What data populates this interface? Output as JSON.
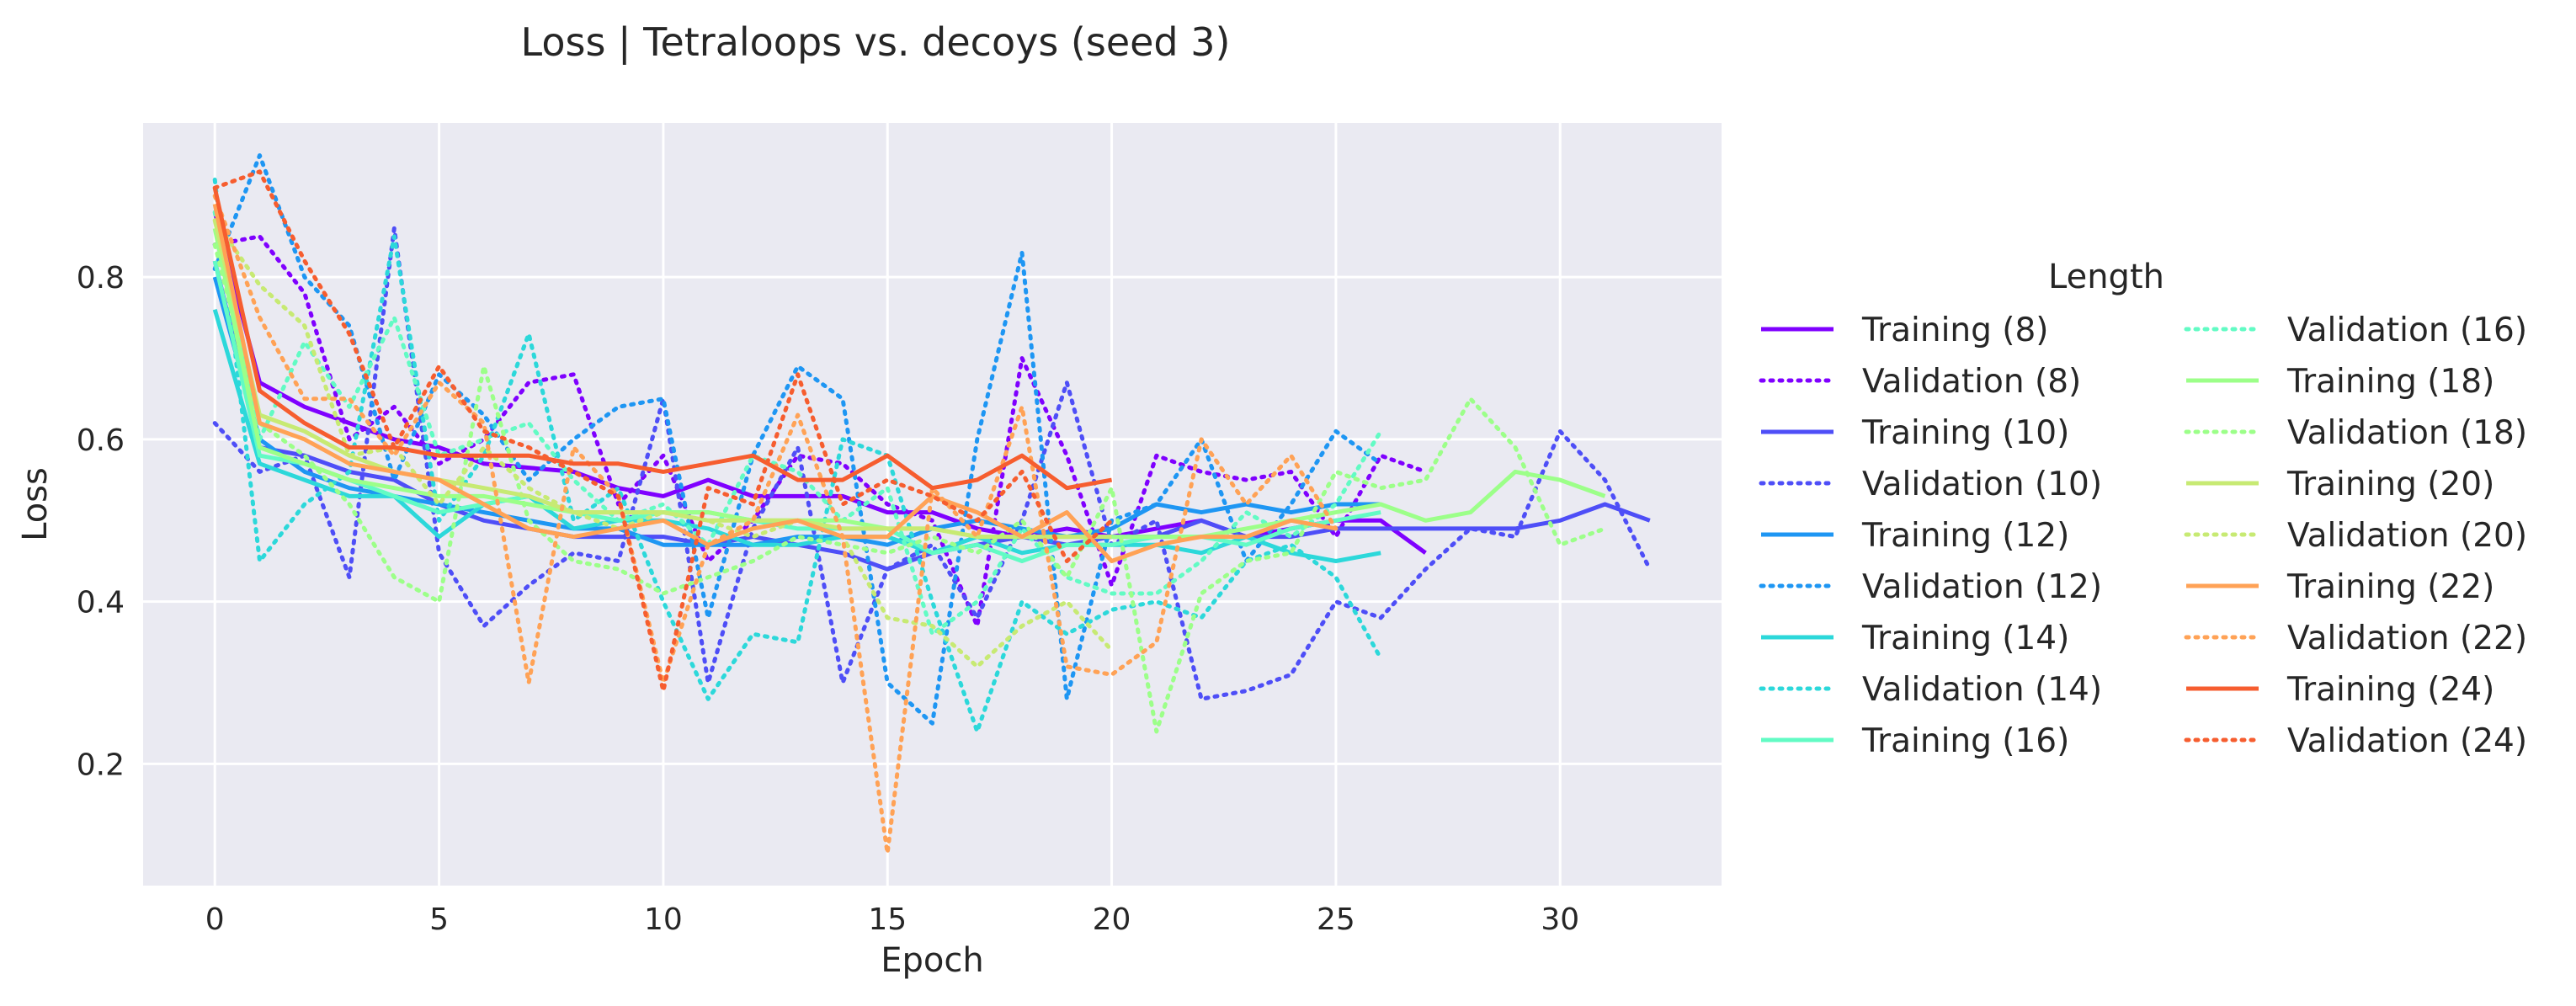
{
  "chart_data": {
    "type": "line",
    "title": "Loss | Tetraloops vs. decoys (seed 3)",
    "xlabel": "Epoch",
    "ylabel": "Loss",
    "xlim": [
      -1.6,
      33.6
    ],
    "ylim": [
      0.05,
      0.99
    ],
    "xticks": [
      0,
      5,
      10,
      15,
      20,
      25,
      30
    ],
    "yticks": [
      0.2,
      0.4,
      0.6,
      0.8
    ],
    "grid": true,
    "legend": {
      "title": "Length",
      "placement": "right",
      "columns": 2
    },
    "series": [
      {
        "name": "Training (8)",
        "color": "#7f00ff",
        "dash": "solid",
        "y": [
          0.88,
          0.67,
          0.64,
          0.62,
          0.6,
          0.59,
          0.57,
          0.565,
          0.56,
          0.54,
          0.53,
          0.55,
          0.53,
          0.53,
          0.53,
          0.51,
          0.51,
          0.49,
          0.48,
          0.49,
          0.48,
          0.49,
          0.5,
          0.48,
          0.49,
          0.5,
          0.5,
          0.46
        ]
      },
      {
        "name": "Validation (8)",
        "color": "#7f00ff",
        "dash": "dotted",
        "y": [
          0.84,
          0.85,
          0.78,
          0.6,
          0.64,
          0.57,
          0.6,
          0.67,
          0.68,
          0.52,
          0.58,
          0.45,
          0.5,
          0.58,
          0.57,
          0.52,
          0.5,
          0.37,
          0.7,
          0.58,
          0.42,
          0.58,
          0.56,
          0.55,
          0.56,
          0.48,
          0.58,
          0.56
        ]
      },
      {
        "name": "Training (10)",
        "color": "#4e4ef7",
        "dash": "solid",
        "y": [
          0.82,
          0.59,
          0.58,
          0.56,
          0.55,
          0.52,
          0.5,
          0.49,
          0.48,
          0.48,
          0.48,
          0.47,
          0.48,
          0.47,
          0.46,
          0.44,
          0.46,
          0.47,
          0.48,
          0.47,
          0.48,
          0.48,
          0.5,
          0.48,
          0.48,
          0.49,
          0.49,
          0.49,
          0.49,
          0.49,
          0.5,
          0.52,
          0.5
        ]
      },
      {
        "name": "Validation (10)",
        "color": "#4e4ef7",
        "dash": "dotted",
        "y": [
          0.62,
          0.56,
          0.58,
          0.43,
          0.86,
          0.46,
          0.37,
          0.42,
          0.46,
          0.45,
          0.65,
          0.3,
          0.49,
          0.59,
          0.3,
          0.44,
          0.47,
          0.38,
          0.5,
          0.67,
          0.47,
          0.5,
          0.28,
          0.29,
          0.31,
          0.4,
          0.38,
          0.44,
          0.49,
          0.48,
          0.61,
          0.55,
          0.44
        ]
      },
      {
        "name": "Training (12)",
        "color": "#1e96f3",
        "dash": "solid",
        "y": [
          0.8,
          0.6,
          0.56,
          0.54,
          0.53,
          0.52,
          0.51,
          0.5,
          0.49,
          0.49,
          0.47,
          0.47,
          0.47,
          0.48,
          0.48,
          0.47,
          0.49,
          0.5,
          0.49,
          0.48,
          0.49,
          0.52,
          0.51,
          0.52,
          0.51,
          0.52,
          0.52
        ]
      },
      {
        "name": "Validation (12)",
        "color": "#1e96f3",
        "dash": "dotted",
        "y": [
          0.81,
          0.95,
          0.8,
          0.74,
          0.55,
          0.68,
          0.63,
          0.55,
          0.6,
          0.64,
          0.65,
          0.38,
          0.58,
          0.69,
          0.65,
          0.3,
          0.25,
          0.6,
          0.83,
          0.28,
          0.5,
          0.52,
          0.6,
          0.45,
          0.52,
          0.61,
          0.57
        ]
      },
      {
        "name": "Training (14)",
        "color": "#2cd8da",
        "dash": "solid",
        "y": [
          0.76,
          0.57,
          0.55,
          0.53,
          0.53,
          0.48,
          0.52,
          0.53,
          0.49,
          0.5,
          0.5,
          0.49,
          0.47,
          0.47,
          0.48,
          0.48,
          0.46,
          0.48,
          0.46,
          0.47,
          0.47,
          0.47,
          0.46,
          0.48,
          0.46,
          0.45,
          0.46
        ]
      },
      {
        "name": "Validation (14)",
        "color": "#2cd8da",
        "dash": "dotted",
        "y": [
          0.92,
          0.45,
          0.52,
          0.56,
          0.85,
          0.5,
          0.58,
          0.73,
          0.5,
          0.54,
          0.4,
          0.28,
          0.36,
          0.35,
          0.6,
          0.58,
          0.4,
          0.24,
          0.4,
          0.36,
          0.39,
          0.4,
          0.38,
          0.45,
          0.47,
          0.43,
          0.33
        ]
      },
      {
        "name": "Training (16)",
        "color": "#62fbc4",
        "dash": "solid",
        "y": [
          0.82,
          0.58,
          0.57,
          0.55,
          0.53,
          0.51,
          0.52,
          0.53,
          0.51,
          0.5,
          0.51,
          0.51,
          0.5,
          0.49,
          0.49,
          0.49,
          0.46,
          0.47,
          0.45,
          0.47,
          0.47,
          0.48,
          0.48,
          0.47,
          0.49,
          0.5,
          0.51
        ]
      },
      {
        "name": "Validation (16)",
        "color": "#62fbc4",
        "dash": "dotted",
        "y": [
          0.88,
          0.6,
          0.72,
          0.64,
          0.75,
          0.58,
          0.6,
          0.62,
          0.55,
          0.5,
          0.52,
          0.47,
          0.58,
          0.56,
          0.5,
          0.54,
          0.36,
          0.4,
          0.49,
          0.43,
          0.41,
          0.41,
          0.45,
          0.51,
          0.48,
          0.52,
          0.61
        ]
      },
      {
        "name": "Training (18)",
        "color": "#9cff89",
        "dash": "solid",
        "y": [
          0.86,
          0.59,
          0.57,
          0.55,
          0.54,
          0.53,
          0.53,
          0.52,
          0.51,
          0.51,
          0.51,
          0.51,
          0.5,
          0.5,
          0.5,
          0.49,
          0.49,
          0.48,
          0.48,
          0.48,
          0.48,
          0.48,
          0.48,
          0.49,
          0.5,
          0.51,
          0.52,
          0.5,
          0.51,
          0.56,
          0.55,
          0.53
        ]
      },
      {
        "name": "Validation (18)",
        "color": "#9cff89",
        "dash": "dotted",
        "y": [
          0.84,
          0.62,
          0.58,
          0.52,
          0.43,
          0.4,
          0.69,
          0.5,
          0.45,
          0.44,
          0.41,
          0.43,
          0.45,
          0.48,
          0.47,
          0.46,
          0.48,
          0.46,
          0.5,
          0.43,
          0.54,
          0.24,
          0.41,
          0.45,
          0.46,
          0.56,
          0.54,
          0.55,
          0.65,
          0.59,
          0.47,
          0.49
        ]
      },
      {
        "name": "Training (20)",
        "color": "#c7ea73",
        "dash": "solid",
        "y": [
          0.87,
          0.63,
          0.61,
          0.58,
          0.56,
          0.55,
          0.54,
          0.53,
          0.51,
          0.51,
          0.51,
          0.5,
          0.5,
          0.5,
          0.49,
          0.49,
          0.49,
          0.48,
          0.48,
          0.48,
          0.48
        ]
      },
      {
        "name": "Validation (20)",
        "color": "#c7ea73",
        "dash": "dotted",
        "y": [
          0.87,
          0.79,
          0.74,
          0.58,
          0.59,
          0.52,
          0.59,
          0.54,
          0.51,
          0.49,
          0.51,
          0.5,
          0.48,
          0.5,
          0.48,
          0.38,
          0.37,
          0.32,
          0.37,
          0.4,
          0.34
        ]
      },
      {
        "name": "Training (22)",
        "color": "#ffa256",
        "dash": "solid",
        "y": [
          0.89,
          0.62,
          0.6,
          0.57,
          0.56,
          0.55,
          0.52,
          0.49,
          0.48,
          0.49,
          0.5,
          0.47,
          0.49,
          0.5,
          0.48,
          0.48,
          0.53,
          0.51,
          0.48,
          0.51,
          0.45,
          0.47,
          0.48,
          0.48,
          0.5,
          0.49
        ]
      },
      {
        "name": "Validation (22)",
        "color": "#ffa256",
        "dash": "dotted",
        "y": [
          0.9,
          0.75,
          0.65,
          0.65,
          0.58,
          0.67,
          0.62,
          0.3,
          0.59,
          0.53,
          0.3,
          0.47,
          0.5,
          0.63,
          0.48,
          0.09,
          0.54,
          0.48,
          0.64,
          0.32,
          0.31,
          0.35,
          0.6,
          0.52,
          0.58,
          0.49
        ]
      },
      {
        "name": "Training (24)",
        "color": "#f65d2f",
        "dash": "solid",
        "y": [
          0.91,
          0.66,
          0.62,
          0.59,
          0.59,
          0.58,
          0.58,
          0.58,
          0.57,
          0.57,
          0.56,
          0.57,
          0.58,
          0.55,
          0.55,
          0.58,
          0.54,
          0.55,
          0.58,
          0.54,
          0.55
        ]
      },
      {
        "name": "Validation (24)",
        "color": "#f65d2f",
        "dash": "dotted",
        "y": [
          0.91,
          0.93,
          0.82,
          0.73,
          0.59,
          0.69,
          0.61,
          0.59,
          0.56,
          0.53,
          0.29,
          0.54,
          0.52,
          0.68,
          0.52,
          0.55,
          0.53,
          0.5,
          0.56,
          0.45,
          0.5
        ]
      }
    ]
  }
}
